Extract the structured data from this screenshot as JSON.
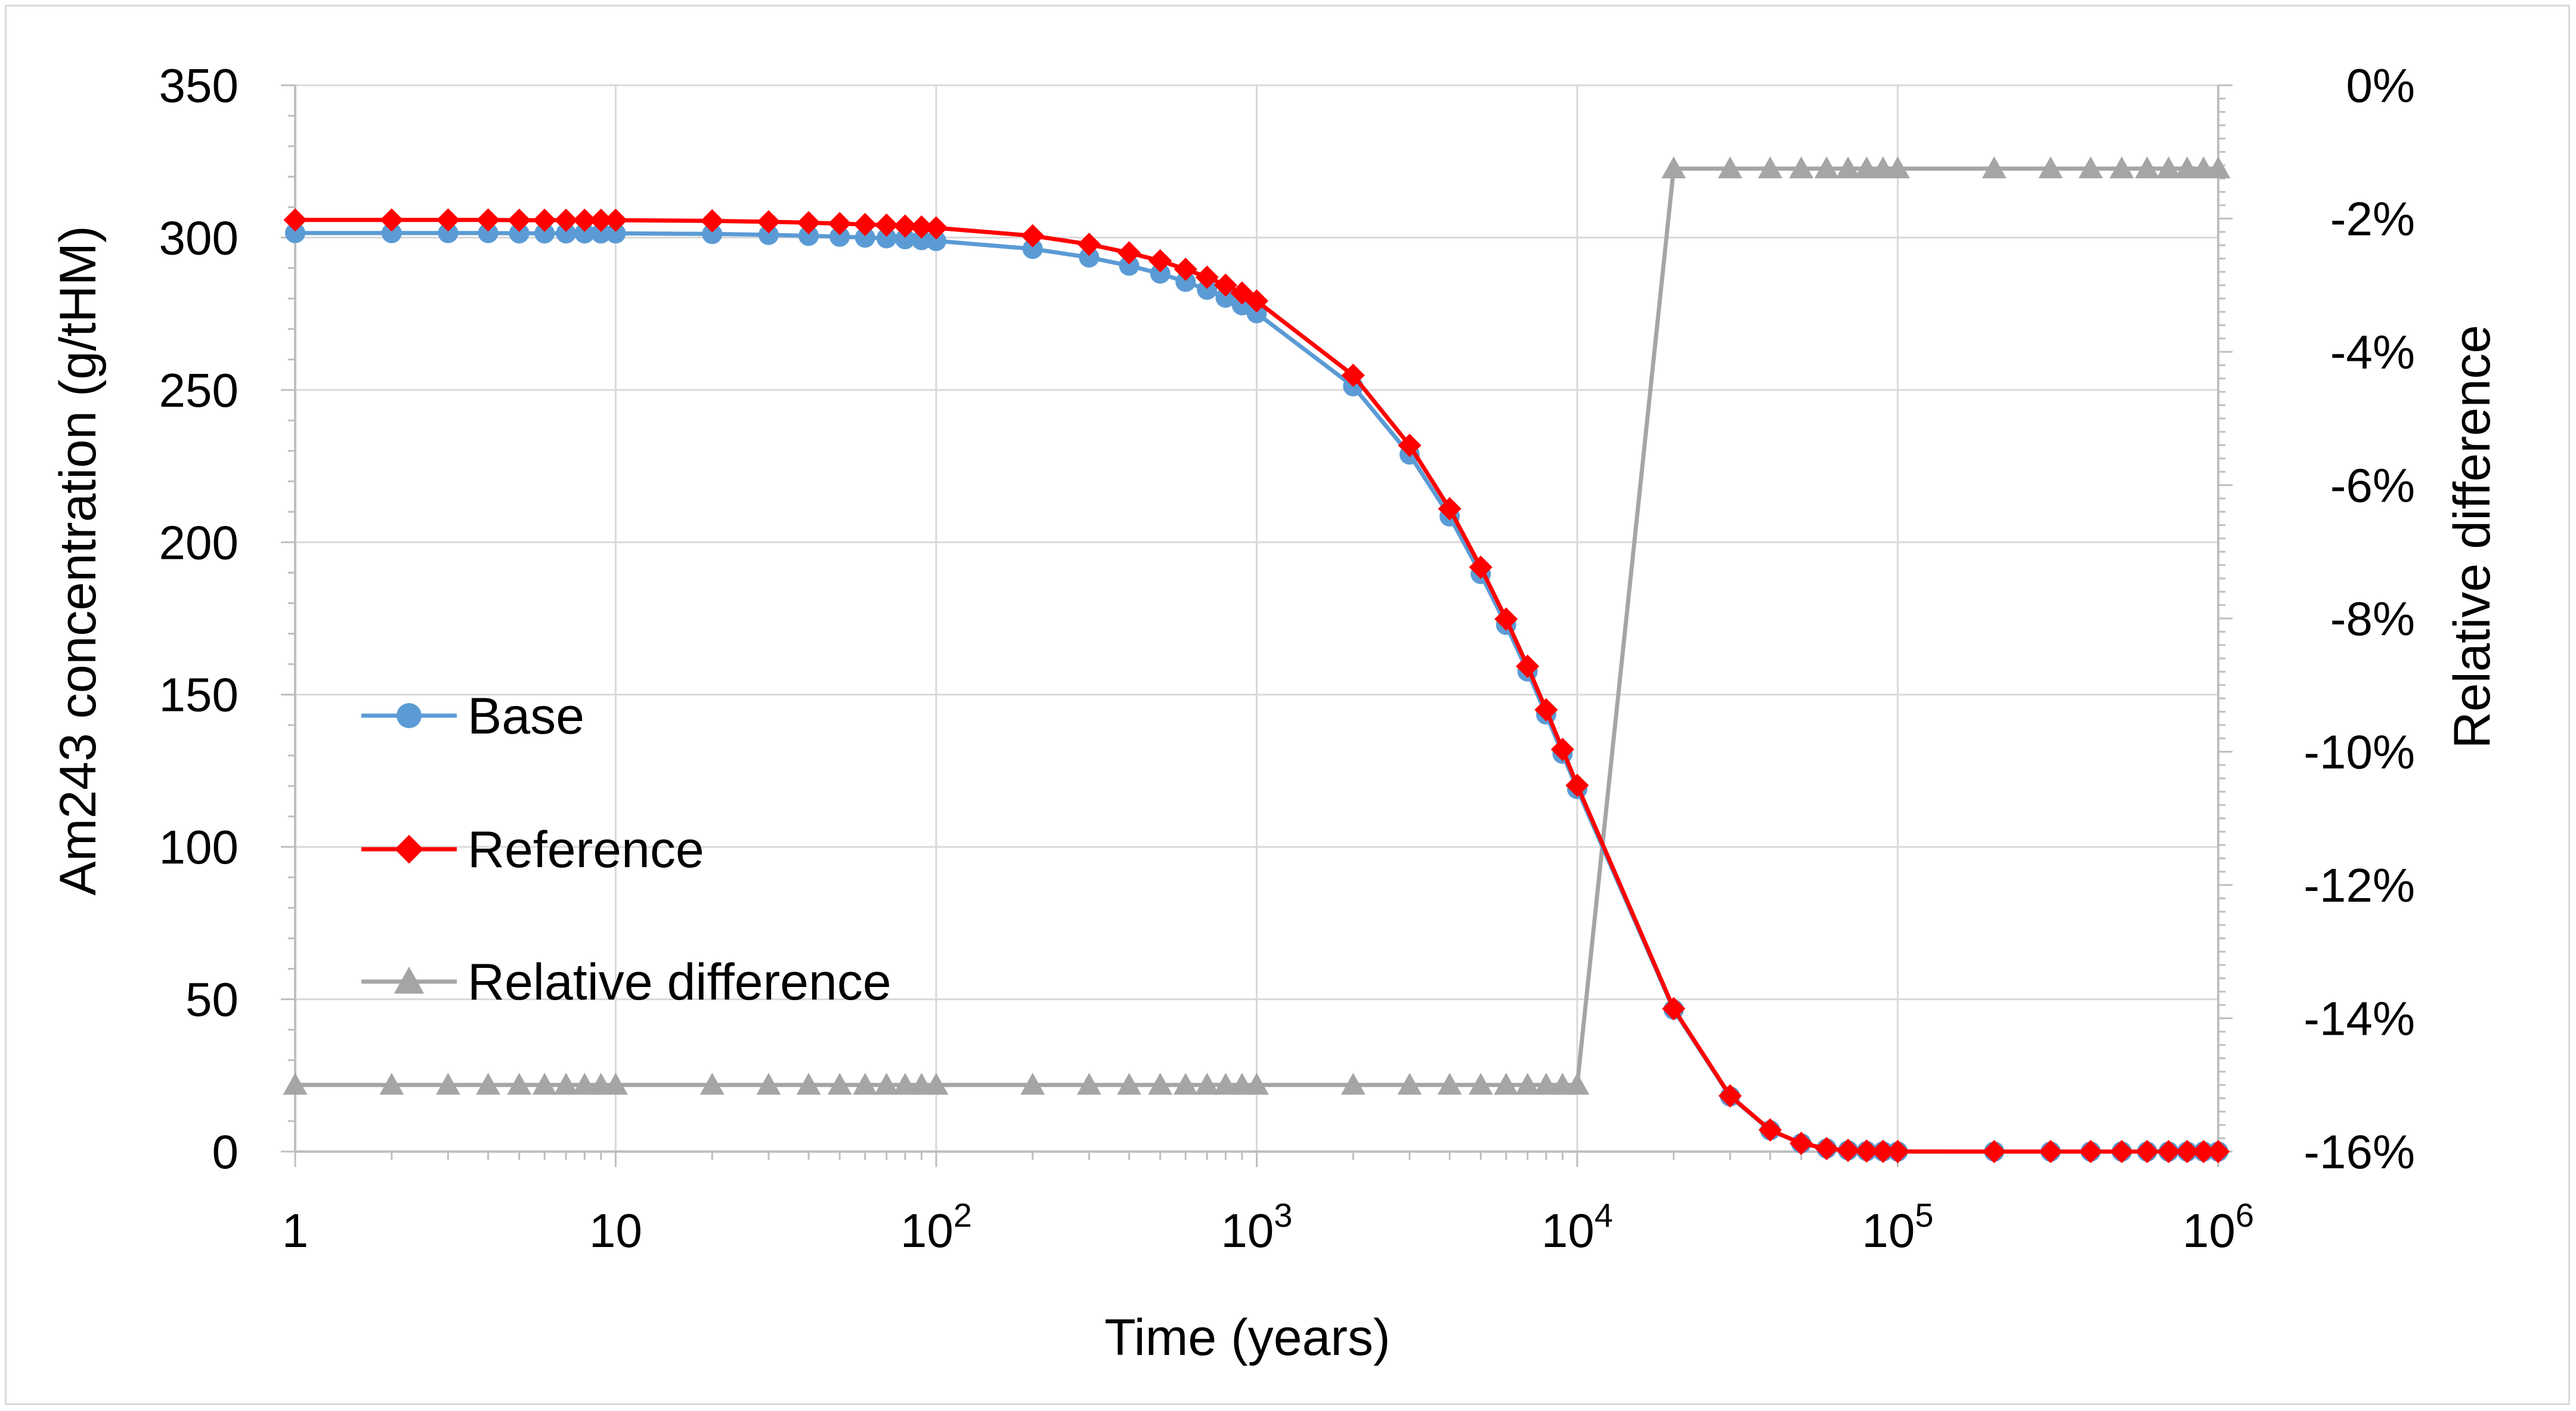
{
  "chart_data": {
    "type": "line",
    "title": "",
    "xlabel": "Time (years)",
    "ylabel": "Am243 concentration (g/tHM)",
    "y2label": "Relative difference",
    "xscale": "log",
    "xlim": [
      1,
      1000000
    ],
    "ylim": [
      0,
      350
    ],
    "y2lim": [
      -0.16,
      0
    ],
    "grid": true,
    "legend_position": "left-middle",
    "x_tick_labels": [
      {
        "base": "1",
        "exp": ""
      },
      {
        "base": "10",
        "exp": ""
      },
      {
        "base": "10",
        "exp": "2"
      },
      {
        "base": "10",
        "exp": "3"
      },
      {
        "base": "10",
        "exp": "4"
      },
      {
        "base": "10",
        "exp": "5"
      },
      {
        "base": "10",
        "exp": "6"
      }
    ],
    "y_tick_labels": [
      "0",
      "50",
      "100",
      "150",
      "200",
      "250",
      "300",
      "350"
    ],
    "y2_tick_labels": [
      "-16%",
      "-14%",
      "-12%",
      "-10%",
      "-8%",
      "-6%",
      "-4%",
      "-2%",
      "0%"
    ],
    "x": [
      1,
      2,
      3,
      4,
      5,
      6,
      7,
      8,
      9,
      10,
      20,
      30,
      40,
      50,
      60,
      70,
      80,
      90,
      100,
      200,
      300,
      400,
      500,
      600,
      700,
      800,
      900,
      1000,
      2000,
      3000,
      4000,
      5000,
      6000,
      7000,
      8000,
      9000,
      10000,
      20000,
      30000,
      40000,
      50000,
      60000,
      70000,
      80000,
      90000,
      100000,
      200000,
      300000,
      400000,
      500000,
      600000,
      700000,
      800000,
      900000,
      1000000
    ],
    "series": [
      {
        "name": "Base",
        "color": "#5b9bd5",
        "marker": "circle",
        "axis": "left",
        "values": [
          301.5,
          301.5,
          301.5,
          301.5,
          301.4,
          301.4,
          301.4,
          301.4,
          301.4,
          301.4,
          301.2,
          300.9,
          300.6,
          300.3,
          300.0,
          299.8,
          299.5,
          299.2,
          298.9,
          296.3,
          293.5,
          290.8,
          288.2,
          285.5,
          282.9,
          280.3,
          277.8,
          275.2,
          251.2,
          228.8,
          208.5,
          189.6,
          172.9,
          157.6,
          143.5,
          130.6,
          119.0,
          46.6,
          18.1,
          7.0,
          2.7,
          1.0,
          0.4,
          0.15,
          0.06,
          0.02,
          0.0,
          0.0,
          0.0,
          0.0,
          0.0,
          0.0,
          0.0,
          0.0,
          0.0
        ]
      },
      {
        "name": "Reference",
        "color": "#ff0000",
        "marker": "diamond",
        "axis": "left",
        "values": [
          305.8,
          305.8,
          305.8,
          305.8,
          305.7,
          305.7,
          305.7,
          305.7,
          305.7,
          305.7,
          305.5,
          305.2,
          304.9,
          304.6,
          304.3,
          304.1,
          303.8,
          303.5,
          303.2,
          300.6,
          297.8,
          295.0,
          292.4,
          289.6,
          287.0,
          284.4,
          281.8,
          279.2,
          254.8,
          231.8,
          211.0,
          191.8,
          174.8,
          159.3,
          145.0,
          132.0,
          120.2,
          46.9,
          18.3,
          7.1,
          2.7,
          1.0,
          0.4,
          0.15,
          0.06,
          0.02,
          0.0,
          0.0,
          0.0,
          0.0,
          0.0,
          0.0,
          0.0,
          0.0,
          0.0
        ]
      },
      {
        "name": "Relative difference",
        "color": "#a5a5a5",
        "marker": "triangle",
        "axis": "right",
        "values": [
          -0.15,
          -0.15,
          -0.15,
          -0.15,
          -0.15,
          -0.15,
          -0.15,
          -0.15,
          -0.15,
          -0.15,
          -0.15,
          -0.15,
          -0.15,
          -0.15,
          -0.15,
          -0.15,
          -0.15,
          -0.15,
          -0.15,
          -0.15,
          -0.15,
          -0.15,
          -0.15,
          -0.15,
          -0.15,
          -0.15,
          -0.15,
          -0.15,
          -0.15,
          -0.15,
          -0.15,
          -0.15,
          -0.15,
          -0.15,
          -0.15,
          -0.15,
          -0.15,
          -0.0125,
          -0.0125,
          -0.0125,
          -0.0125,
          -0.0125,
          -0.0125,
          -0.0125,
          -0.0125,
          -0.0125,
          -0.0125,
          -0.0125,
          -0.0125,
          -0.0125,
          -0.0125,
          -0.0125,
          -0.0125,
          -0.0125,
          -0.0125
        ]
      }
    ]
  }
}
